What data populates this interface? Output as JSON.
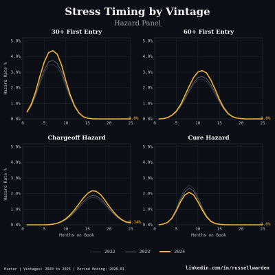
{
  "header": {
    "title": "Stress Timing by Vintage",
    "subtitle": "Hazard Panel"
  },
  "legend": {
    "items": [
      {
        "label": "2022",
        "color": "#3a3f4a"
      },
      {
        "label": "2023",
        "color": "#6a707c"
      },
      {
        "label": "2024",
        "color": "#f2b632"
      }
    ]
  },
  "footer": {
    "left": "Exeter | Vintages: 2020 to 2025 | Period Ending: 2026-01",
    "right": "linkedin.com/in/russellwarden"
  },
  "chart_data": [
    {
      "type": "line",
      "title": "30+ First Entry",
      "xlabel": "",
      "ylabel": "Hazard Rate %",
      "xlim": [
        0,
        25
      ],
      "ylim": [
        0,
        5.2
      ],
      "xticks": [
        0,
        5,
        10,
        15,
        20,
        25
      ],
      "yticks": [
        "0.0%",
        "1.0%",
        "2.0%",
        "3.0%",
        "4.0%",
        "5.0%"
      ],
      "end_label": "0.0%",
      "x": [
        1,
        2,
        3,
        4,
        5,
        6,
        7,
        8,
        9,
        10,
        11,
        12,
        13,
        14,
        15,
        16,
        17,
        18,
        19,
        20,
        21,
        22,
        23,
        24,
        25
      ],
      "series": [
        {
          "name": "2022",
          "values": [
            0.4,
            0.8,
            1.45,
            2.25,
            2.95,
            3.45,
            3.5,
            3.3,
            2.85,
            2.05,
            1.35,
            0.75,
            0.35,
            0.13,
            0.04,
            0.01,
            0,
            0,
            0,
            0,
            0,
            0,
            0,
            0,
            0
          ]
        },
        {
          "name": "2023",
          "values": [
            0.42,
            0.85,
            1.55,
            2.4,
            3.15,
            3.65,
            3.75,
            3.55,
            3.05,
            2.2,
            1.45,
            0.8,
            0.38,
            0.14,
            0.05,
            0.01,
            0,
            0,
            0,
            0,
            0,
            0,
            0,
            0,
            0
          ]
        },
        {
          "name": "2024",
          "values": [
            0.45,
            0.95,
            1.75,
            2.75,
            3.65,
            4.25,
            4.38,
            4.15,
            3.45,
            2.45,
            1.55,
            0.85,
            0.4,
            0.15,
            0.05,
            0.01,
            0,
            0,
            0,
            0,
            0,
            0,
            0,
            0,
            0
          ]
        }
      ]
    },
    {
      "type": "line",
      "title": "60+ First Entry",
      "xlabel": "",
      "ylabel": "",
      "xlim": [
        0,
        25
      ],
      "ylim": [
        0,
        5.2
      ],
      "xticks": [
        0,
        5,
        10,
        15,
        20,
        25
      ],
      "yticks": [
        "0.0%",
        "1.0%",
        "2.0%",
        "3.0%",
        "4.0%",
        "5.0%"
      ],
      "end_label": "0.0%",
      "x": [
        1,
        2,
        3,
        4,
        5,
        6,
        7,
        8,
        9,
        10,
        11,
        12,
        13,
        14,
        15,
        16,
        17,
        18,
        19,
        20,
        21,
        22,
        23,
        24,
        25
      ],
      "series": [
        {
          "name": "2022",
          "values": [
            0,
            0.02,
            0.08,
            0.2,
            0.42,
            0.78,
            1.25,
            1.75,
            2.2,
            2.5,
            2.55,
            2.4,
            2.05,
            1.55,
            1.05,
            0.6,
            0.3,
            0.13,
            0.05,
            0.02,
            0,
            0,
            0,
            0,
            0
          ]
        },
        {
          "name": "2023",
          "values": [
            0,
            0.02,
            0.08,
            0.22,
            0.45,
            0.82,
            1.32,
            1.85,
            2.32,
            2.65,
            2.72,
            2.58,
            2.2,
            1.68,
            1.13,
            0.65,
            0.32,
            0.14,
            0.05,
            0.02,
            0,
            0,
            0,
            0,
            0
          ]
        },
        {
          "name": "2024",
          "values": [
            0,
            0.02,
            0.09,
            0.24,
            0.5,
            0.92,
            1.5,
            2.1,
            2.65,
            3.0,
            3.1,
            2.95,
            2.5,
            1.9,
            1.25,
            0.72,
            0.35,
            0.15,
            0.06,
            0.02,
            0,
            0,
            0,
            0,
            0
          ]
        }
      ]
    },
    {
      "type": "line",
      "title": "Chargeoff Hazard",
      "xlabel": "Months on Book",
      "ylabel": "Hazard Rate %",
      "xlim": [
        0,
        25
      ],
      "ylim": [
        0,
        5.2
      ],
      "xticks": [
        0,
        5,
        10,
        15,
        20,
        25
      ],
      "yticks": [
        "0.0%",
        "1.0%",
        "2.0%",
        "3.0%",
        "4.0%",
        "5.0%"
      ],
      "end_label": "0.14%",
      "x": [
        1,
        2,
        3,
        4,
        5,
        6,
        7,
        8,
        9,
        10,
        11,
        12,
        13,
        14,
        15,
        16,
        17,
        18,
        19,
        20,
        21,
        22,
        23,
        24,
        25
      ],
      "series": [
        {
          "name": "2022",
          "values": [
            0,
            0,
            0,
            0,
            0,
            0.01,
            0.03,
            0.08,
            0.17,
            0.32,
            0.52,
            0.78,
            1.08,
            1.38,
            1.62,
            1.75,
            1.72,
            1.55,
            1.28,
            0.98,
            0.7,
            0.45,
            0.27,
            0.14,
            0.1
          ]
        },
        {
          "name": "2023",
          "values": [
            0,
            0,
            0,
            0,
            0,
            0.01,
            0.03,
            0.09,
            0.18,
            0.34,
            0.56,
            0.84,
            1.16,
            1.48,
            1.74,
            1.88,
            1.85,
            1.67,
            1.38,
            1.05,
            0.74,
            0.48,
            0.29,
            0.15,
            0.11
          ]
        },
        {
          "name": "2024",
          "values": [
            0,
            0,
            0,
            0,
            0,
            0.01,
            0.04,
            0.1,
            0.21,
            0.39,
            0.64,
            0.96,
            1.33,
            1.7,
            2.0,
            2.18,
            2.15,
            1.95,
            1.6,
            1.2,
            0.84,
            0.54,
            0.32,
            0.18,
            0.14
          ]
        }
      ]
    },
    {
      "type": "line",
      "title": "Cure Hazard",
      "xlabel": "Months on Book",
      "ylabel": "",
      "xlim": [
        0,
        25
      ],
      "ylim": [
        0,
        5.2
      ],
      "xticks": [
        0,
        5,
        10,
        15,
        20,
        25
      ],
      "yticks": [
        "0.0%",
        "1.0%",
        "2.0%",
        "3.0%",
        "4.0%",
        "5.0%"
      ],
      "end_label": "0.0%",
      "x": [
        1,
        2,
        3,
        4,
        5,
        6,
        7,
        8,
        9,
        10,
        11,
        12,
        13,
        14,
        15,
        16,
        17,
        18,
        19,
        20,
        21,
        22,
        23,
        24,
        25
      ],
      "series": [
        {
          "name": "2022",
          "values": [
            0,
            0.05,
            0.18,
            0.48,
            1.05,
            1.75,
            2.3,
            2.55,
            2.35,
            1.8,
            1.15,
            0.6,
            0.27,
            0.1,
            0.03,
            0.01,
            0,
            0,
            0,
            0,
            0,
            0,
            0,
            0,
            0
          ]
        },
        {
          "name": "2023",
          "values": [
            0,
            0.05,
            0.17,
            0.45,
            0.98,
            1.62,
            2.12,
            2.35,
            2.18,
            1.68,
            1.08,
            0.57,
            0.25,
            0.09,
            0.03,
            0.01,
            0,
            0,
            0,
            0,
            0,
            0,
            0,
            0,
            0
          ]
        },
        {
          "name": "2024",
          "values": [
            0,
            0.05,
            0.16,
            0.42,
            0.9,
            1.48,
            1.92,
            2.08,
            1.92,
            1.48,
            0.96,
            0.51,
            0.22,
            0.08,
            0.03,
            0.01,
            0,
            0,
            0,
            0,
            0,
            0,
            0,
            0,
            0
          ]
        }
      ]
    }
  ]
}
